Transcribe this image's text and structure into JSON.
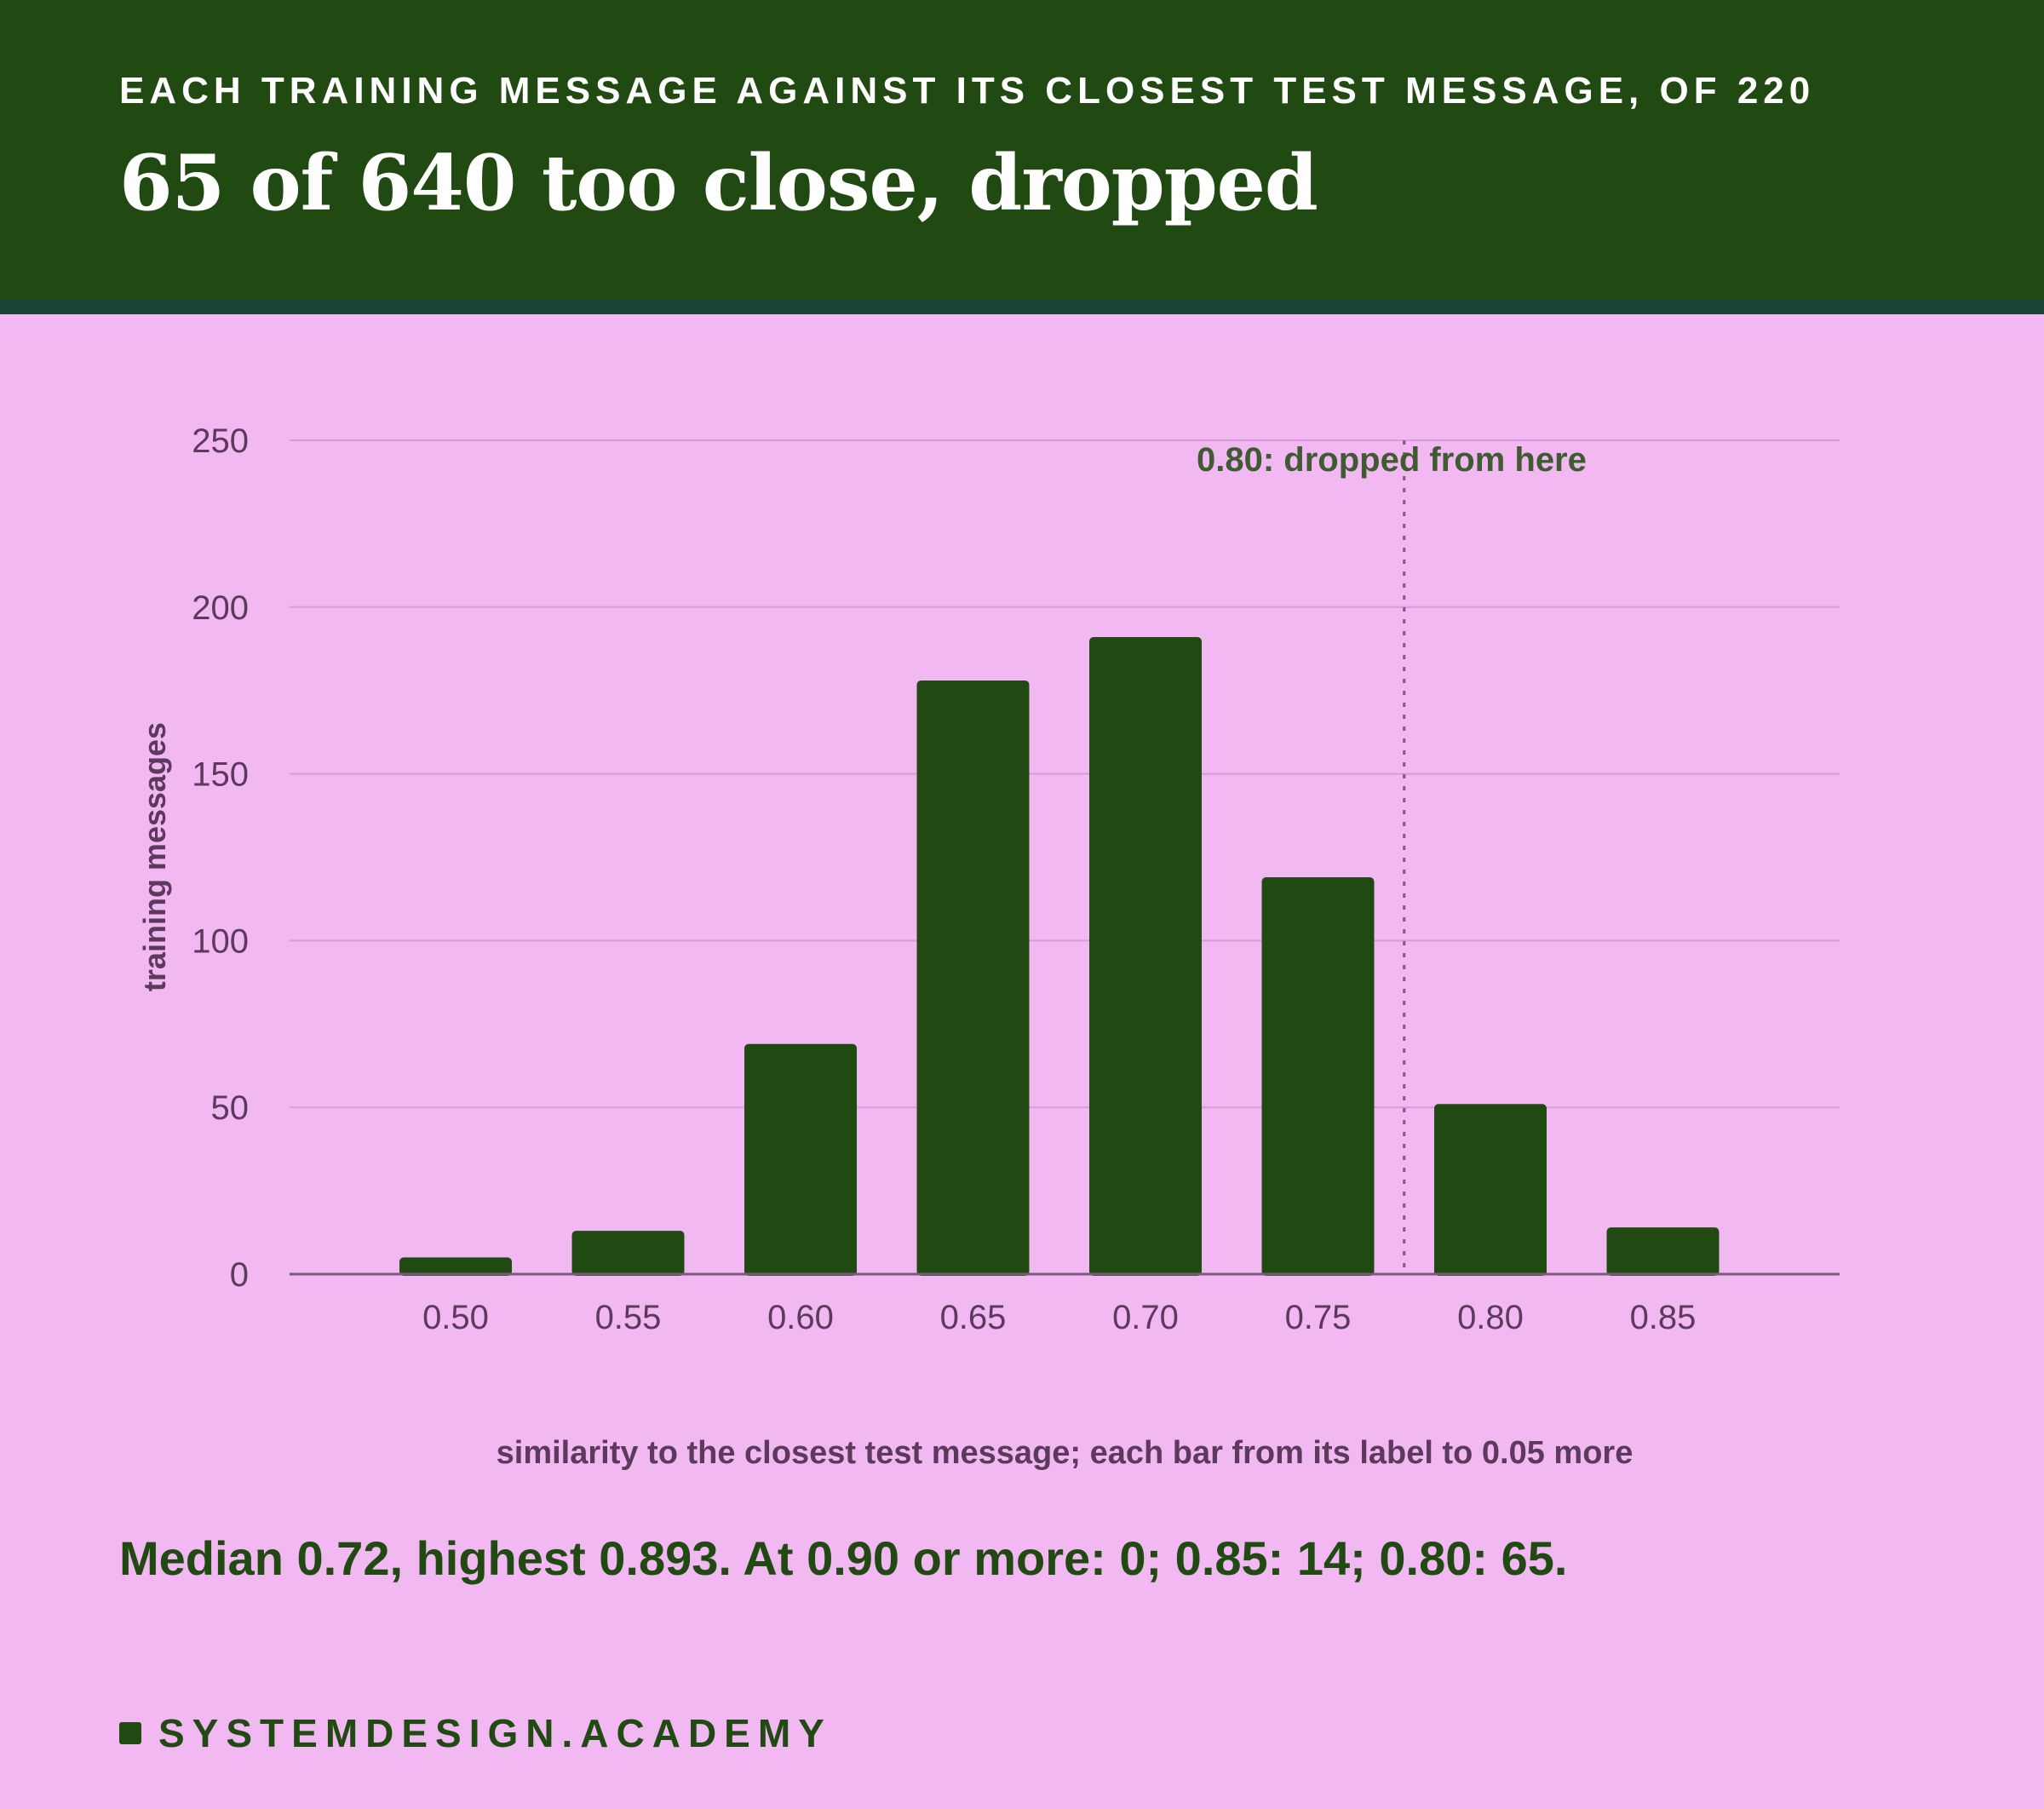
{
  "header": {
    "kicker": "EACH TRAINING MESSAGE AGAINST ITS CLOSEST TEST MESSAGE, OF 220",
    "headline": "65 of 640 too close, dropped"
  },
  "colors": {
    "header_bg": "#214a12",
    "header_rule": "#1a4436",
    "page_bg": "#f2b8f2",
    "bar": "#214a12",
    "axis_text": "#5c3a5c",
    "annotation": "#405a32"
  },
  "chart_data": {
    "type": "bar",
    "categories": [
      "0.50",
      "0.55",
      "0.60",
      "0.65",
      "0.70",
      "0.75",
      "0.80",
      "0.85"
    ],
    "values": [
      5,
      13,
      69,
      178,
      191,
      119,
      51,
      14
    ],
    "xlabel": "similarity to the closest test message; each bar from its label to 0.05 more",
    "ylabel": "training messages",
    "ylim": [
      0,
      250
    ],
    "yticks": [
      0,
      50,
      100,
      150,
      200,
      250
    ],
    "grid": true,
    "threshold": {
      "x": 0.8,
      "label": "0.80: dropped from here"
    }
  },
  "summary": "Median 0.72, highest 0.893. At 0.90 or more: 0; 0.85: 14; 0.80: 65.",
  "brand": "SYSTEMDESIGN.ACADEMY"
}
